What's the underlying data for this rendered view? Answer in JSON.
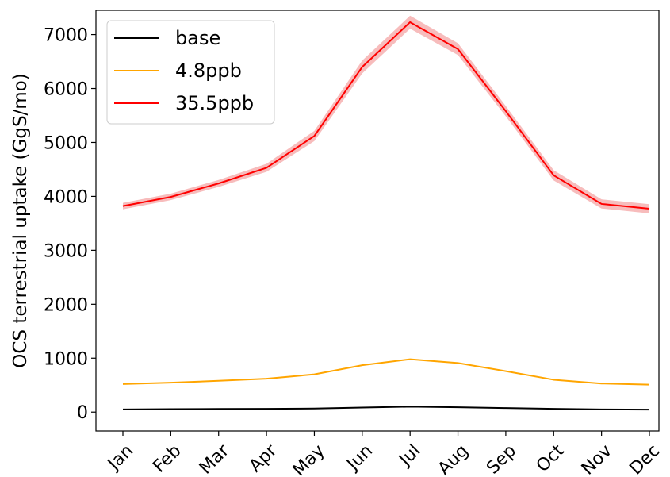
{
  "chart_data": {
    "type": "line",
    "title": "",
    "xlabel": "",
    "ylabel": "OCS terrestrial uptake (GgS/mo)",
    "categories": [
      "Jan",
      "Feb",
      "Mar",
      "Apr",
      "May",
      "Jun",
      "Jul",
      "Aug",
      "Sep",
      "Oct",
      "Nov",
      "Dec"
    ],
    "ylim": [
      -350,
      7450
    ],
    "yticks": [
      0,
      1000,
      2000,
      3000,
      4000,
      5000,
      6000,
      7000
    ],
    "grid": false,
    "legend_position": "top-left",
    "series": [
      {
        "name": "base",
        "color": "#000000",
        "values": [
          50,
          55,
          58,
          60,
          65,
          85,
          100,
          90,
          75,
          60,
          50,
          45
        ]
      },
      {
        "name": "4.8ppb",
        "color": "#FFA500",
        "values": [
          520,
          545,
          580,
          620,
          700,
          870,
          980,
          910,
          760,
          600,
          530,
          510
        ]
      },
      {
        "name": "35.5ppb",
        "color": "#FF0000",
        "band_color": "#F4A6A6",
        "values": [
          3820,
          3990,
          4240,
          4530,
          5120,
          6400,
          7230,
          6730,
          5580,
          4390,
          3860,
          3770
        ],
        "band_halfwidth": [
          60,
          60,
          65,
          75,
          95,
          120,
          120,
          110,
          95,
          95,
          85,
          85
        ]
      }
    ]
  }
}
